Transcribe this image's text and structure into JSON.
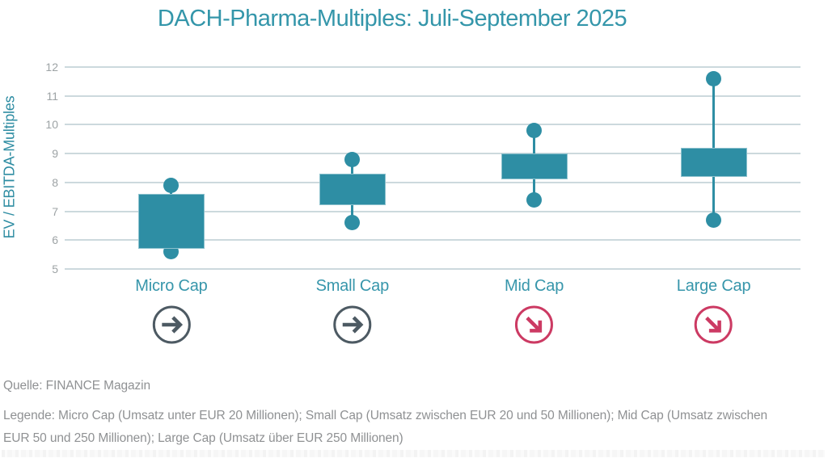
{
  "title": "DACH-Pharma-Multiples: Juli-September 2025",
  "y_axis_label": "EV / EBITDA-Multiples",
  "source": "Quelle: FINANCE Magazin",
  "legend": {
    "line1": "Legende: Micro Cap (Umsatz unter EUR 20 Millionen); Small Cap (Umsatz zwischen EUR 20 und 50 Millionen); Mid Cap (Umsatz zwischen",
    "line2": "EUR 50 und 250 Millionen); Large Cap (Umsatz über EUR 250 Millionen)"
  },
  "colors": {
    "title_teal": "#3496aa",
    "axis_label_teal": "#2d8ca2",
    "category_label_teal": "#3796ab",
    "box_fill": "#2e8ea4",
    "gridline": "#ccd9dd",
    "tick_gray": "#9da3a5",
    "note_gray": "#8f9193",
    "neutral_arrow": "#4d5a63",
    "negative_arrow": "#cc3a63"
  },
  "chart_data": {
    "type": "boxplot",
    "title": "DACH-Pharma-Multiples: Juli-September 2025",
    "xlabel": "",
    "ylabel": "EV / EBITDA-Multiples",
    "ylim": [
      5,
      12
    ],
    "yticks": [
      5,
      6,
      7,
      8,
      9,
      10,
      11,
      12
    ],
    "grid": "horizontal",
    "legend_position": "none",
    "categories": [
      "Micro Cap",
      "Small Cap",
      "Mid Cap",
      "Large Cap"
    ],
    "series": [
      {
        "category": "Micro Cap",
        "min": 5.6,
        "box_low": 5.7,
        "box_high": 7.6,
        "max": 7.9,
        "trend": "flat"
      },
      {
        "category": "Small Cap",
        "min": 6.6,
        "box_low": 7.2,
        "box_high": 8.3,
        "max": 8.8,
        "trend": "flat"
      },
      {
        "category": "Mid Cap",
        "min": 7.4,
        "box_low": 8.1,
        "box_high": 9.0,
        "max": 9.8,
        "trend": "down"
      },
      {
        "category": "Large Cap",
        "min": 6.7,
        "box_low": 8.2,
        "box_high": 9.2,
        "max": 11.6,
        "trend": "down"
      }
    ]
  }
}
